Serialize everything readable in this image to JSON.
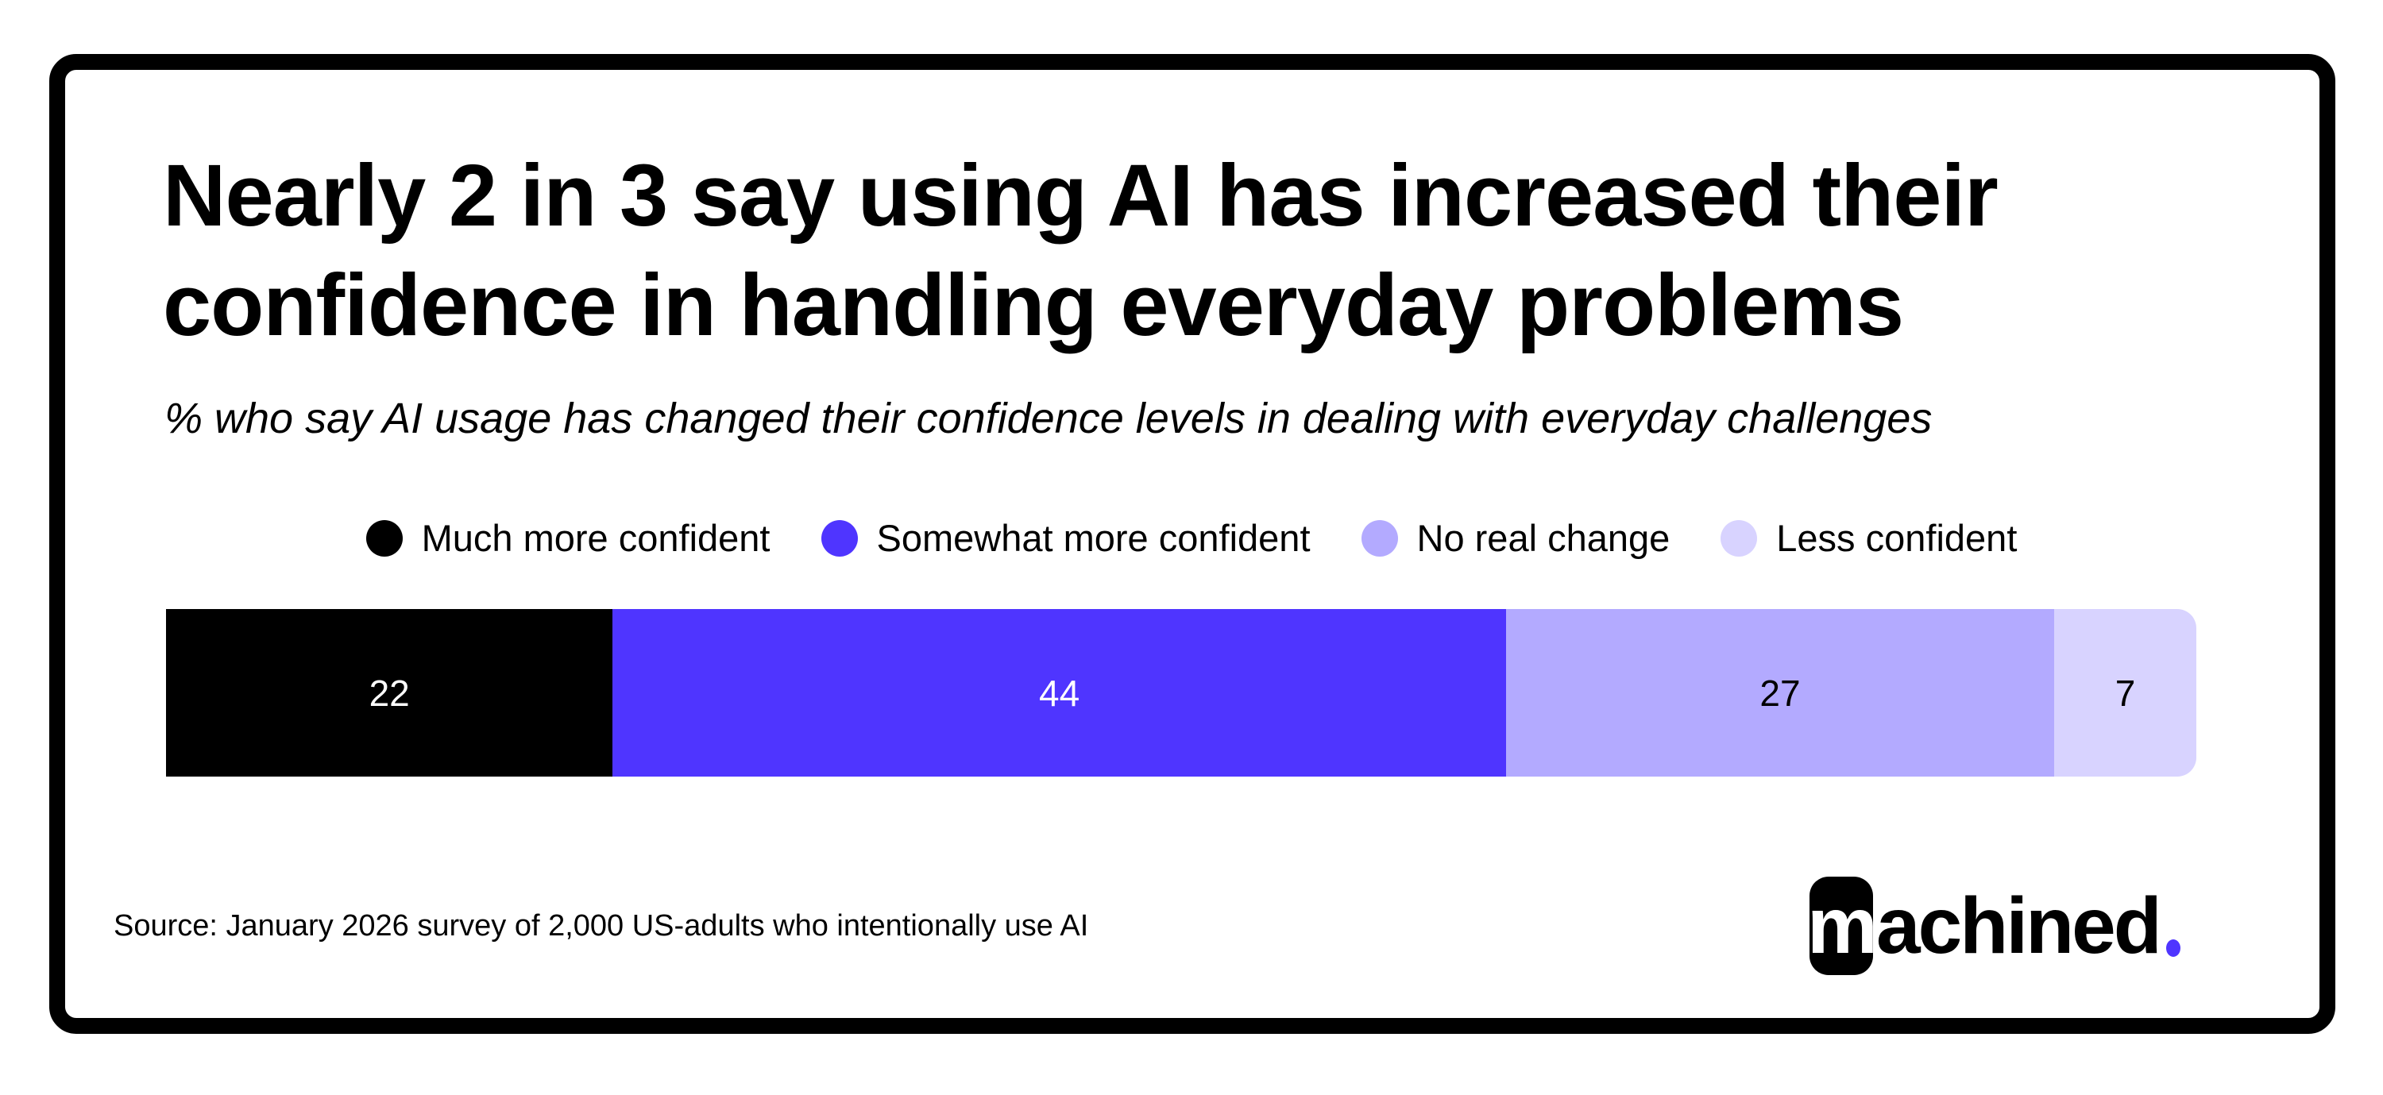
{
  "title": "Nearly 2 in 3 say using AI has increased their confidence in handling everyday problems",
  "subtitle": "% who say AI usage has changed their confidence levels in dealing with everyday challenges",
  "source": "Source:  January 2026 survey of 2,000 US-adults who intentionally use AI",
  "logo": {
    "text": "machined",
    "box_letter": "m",
    "rest": "achined",
    "dot_color": "#4f35ff"
  },
  "chart_data": {
    "type": "bar",
    "orientation": "horizontal-stacked-100",
    "categories": [
      "Much more confident",
      "Somewhat more confident",
      "No real change",
      "Less confident"
    ],
    "values": [
      22,
      44,
      27,
      7
    ],
    "colors": [
      "#000000",
      "#4f35ff",
      "#b3aaff",
      "#d8d3ff"
    ],
    "label_colors": [
      "#ffffff",
      "#ffffff",
      "#000000",
      "#000000"
    ],
    "legend_position": "top",
    "grid": false
  }
}
